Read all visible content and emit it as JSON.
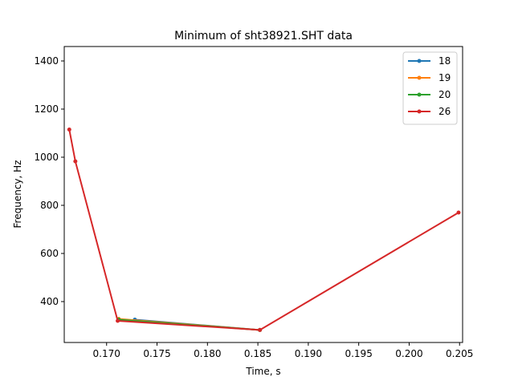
{
  "chart_data": {
    "type": "line",
    "title": "Minimum of sht38921.SHT data",
    "xlabel": "Time, s",
    "ylabel": "Frequency, Hz",
    "xlim": [
      0.1658,
      0.2053
    ],
    "ylim": [
      230,
      1460
    ],
    "xticks": [
      0.17,
      0.175,
      0.18,
      0.185,
      0.19,
      0.195,
      0.2,
      0.205
    ],
    "xtick_labels": [
      "0.170",
      "0.175",
      "0.180",
      "0.185",
      "0.190",
      "0.195",
      "0.200",
      "0.205"
    ],
    "yticks": [
      400,
      600,
      800,
      1000,
      1200,
      1400
    ],
    "ytick_labels": [
      "400",
      "600",
      "800",
      "1000",
      "1200",
      "1400"
    ],
    "legend_position": "top-right",
    "grid": false,
    "series": [
      {
        "name": "18",
        "color": "#1f77b4",
        "x": [
          0.1728,
          0.1852
        ],
        "y": [
          325,
          282
        ]
      },
      {
        "name": "19",
        "color": "#ff7f0e",
        "x": [
          0.1712,
          0.1852
        ],
        "y": [
          328,
          282
        ]
      },
      {
        "name": "20",
        "color": "#2ca02c",
        "x": [
          0.1712,
          0.1852
        ],
        "y": [
          325,
          282
        ]
      },
      {
        "name": "26",
        "color": "#d62728",
        "x": [
          0.1663,
          0.1669,
          0.1711,
          0.1852,
          0.2049
        ],
        "y": [
          1115,
          983,
          320,
          282,
          770
        ]
      }
    ]
  }
}
